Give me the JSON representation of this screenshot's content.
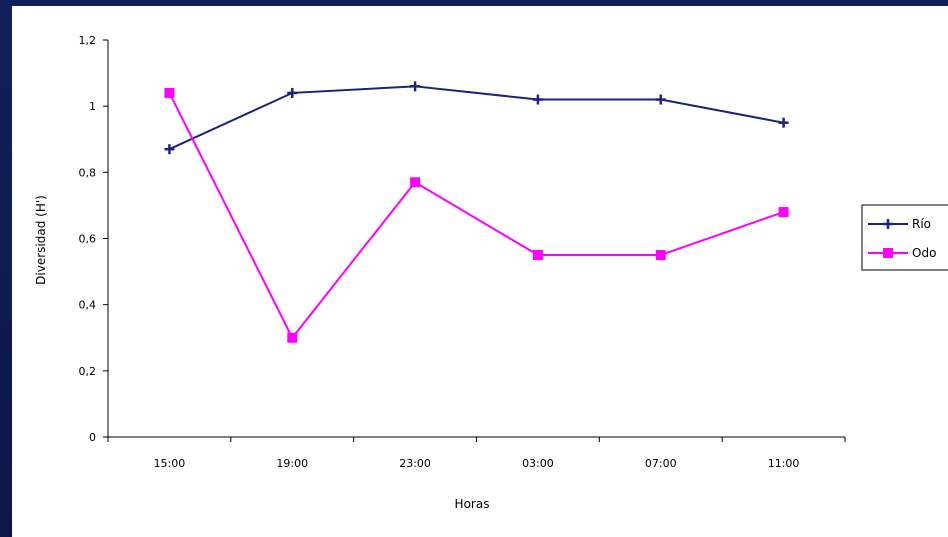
{
  "chart_data": {
    "type": "line",
    "categories": [
      "15:00",
      "19:00",
      "23:00",
      "03:00",
      "07:00",
      "11:00"
    ],
    "series": [
      {
        "name": "Río",
        "values": [
          0.87,
          1.04,
          1.06,
          1.02,
          1.02,
          0.95
        ],
        "color": "#1a237e",
        "marker": "plus"
      },
      {
        "name": "Odo",
        "values": [
          1.04,
          0.3,
          0.77,
          0.55,
          0.55,
          0.68
        ],
        "color": "#ff00ff",
        "marker": "square"
      }
    ],
    "yticks": [
      "0",
      "0,2",
      "0,4",
      "0,6",
      "0,8",
      "1",
      "1,2"
    ],
    "ylim": [
      0,
      1.2
    ],
    "xlabel": "Horas",
    "ylabel": "Diversidad (H')",
    "grid": false,
    "legend": "right"
  }
}
